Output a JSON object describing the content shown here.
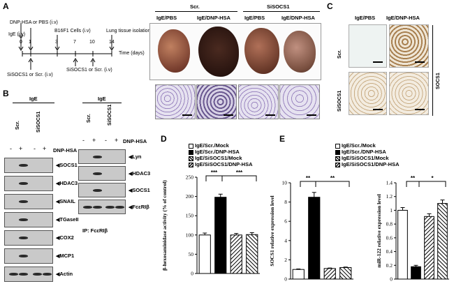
{
  "panels": {
    "A": "A",
    "B": "B",
    "C": "C",
    "D": "D",
    "E": "E"
  },
  "timeline": {
    "dnp_label": "DNP-HSA or PBS (i.v)",
    "ige_label": "IgE (i.v)",
    "b16_label": "B16F1 Cells (i.v)",
    "lung_label": "Lung tissue isolation",
    "time_label": "Time (days)",
    "ticks": [
      "0",
      "1",
      "3",
      "7",
      "10",
      "14"
    ],
    "sisocs_label_1": "SiSOCS1 or Scr. (i.v)",
    "sisocs_label_2": "SiSOCS1 or Scr. (i.v)"
  },
  "panelA_headers": {
    "scr": "Scr.",
    "sisocs": "SiSOCS1",
    "ige_pbs_1": "IgE/PBS",
    "ige_dnp_1": "IgE/DNP-HSA",
    "ige_pbs_2": "IgE/PBS",
    "ige_dnp_2": "IgE/DNP-HSA"
  },
  "panelB": {
    "ige": "IgE",
    "scr": "Scr.",
    "sisocs": "SiSOCS1",
    "dnp": "DNP-HSA",
    "signs": [
      "-",
      "+",
      "-",
      "+"
    ],
    "proteins": [
      "SOCS1",
      "HDAC3",
      "SNAIL",
      "TGaseII",
      "COX2",
      "MCP1",
      "Actin"
    ],
    "ip_ige": "IgE",
    "ip_scr": "Scr.",
    "ip_sisocs": "SiSOCS1",
    "ip_dnp": "DNP-HSA",
    "ip_proteins": [
      "Lyn",
      "HDAC3",
      "SOCS1",
      "FcεRIβ"
    ],
    "ip_caption": "IP: FcεRIβ"
  },
  "panelC": {
    "ige_pbs": "IgE/PBS",
    "ige_dnp": "IgE/DNP-HSA",
    "scr": "Scr.",
    "sisocs": "SiSOCS1",
    "socs1": "SOCS1"
  },
  "legend": [
    "IgE/Scr./Mock",
    "IgE/Scr./DNP-HSA",
    "IgE/SiSOCS1/Mock",
    "IgE/SiSOCS1/DNP-HSA"
  ],
  "chart_data": [
    {
      "type": "bar",
      "panel": "D",
      "categories": [
        "IgE/Scr./Mock",
        "IgE/Scr./DNP-HSA",
        "IgE/SiSOCS1/Mock",
        "IgE/SiSOCS1/DNP-HSA"
      ],
      "values": [
        100,
        198,
        100,
        101
      ],
      "errors": [
        5,
        8,
        4,
        5
      ],
      "ylabel": "β-hexosaminidase activity (% of control)",
      "ylim": [
        0,
        250
      ],
      "yticks": [
        "0",
        "50",
        "100",
        "150",
        "200",
        "250"
      ],
      "sig": [
        "***",
        "***"
      ]
    },
    {
      "type": "bar",
      "panel": "E",
      "categories": [
        "IgE/Scr./Mock",
        "IgE/Scr./DNP-HSA",
        "IgE/SiSOCS1/Mock",
        "IgE/SiSOCS1/DNP-HSA"
      ],
      "values": [
        1,
        8.5,
        1.1,
        1.2
      ],
      "errors": [
        0.05,
        0.5,
        0.05,
        0.05
      ],
      "ylabel": "SOCS1 relative expression level",
      "ylim": [
        0,
        10
      ],
      "yticks": [
        "0",
        "2",
        "4",
        "6",
        "8",
        "10"
      ],
      "sig": [
        "**",
        "**"
      ]
    },
    {
      "type": "bar",
      "panel": "E",
      "categories": [
        "IgE/Scr./Mock",
        "IgE/Scr./DNP-HSA",
        "IgE/SiSOCS1/Mock",
        "IgE/SiSOCS1/DNP-HSA"
      ],
      "values": [
        1,
        0.18,
        0.91,
        1.1
      ],
      "errors": [
        0.04,
        0.02,
        0.04,
        0.05
      ],
      "ylabel": "miR-122 relative expression level",
      "ylim": [
        0,
        1.4
      ],
      "yticks": [
        "0",
        "0.2",
        "0.4",
        "0.6",
        "0.8",
        "1",
        "1.2",
        "1.4"
      ],
      "sig": [
        "**",
        "*"
      ]
    }
  ]
}
